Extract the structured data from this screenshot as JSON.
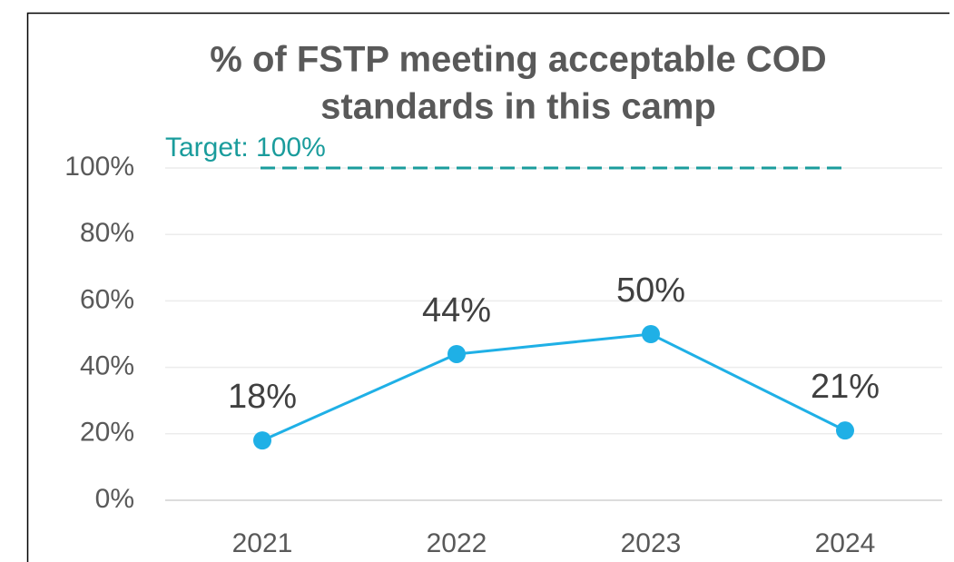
{
  "chart_data": {
    "type": "line",
    "title": [
      "% of FSTP meeting acceptable COD",
      "standards in this camp"
    ],
    "categories": [
      "2021",
      "2022",
      "2023",
      "2024"
    ],
    "values": [
      18,
      44,
      50,
      21
    ],
    "value_labels": [
      "18%",
      "44%",
      "50%",
      "21%"
    ],
    "color": "#1fb0e6",
    "target": {
      "value": 100,
      "label": "Target: 100%",
      "color": "#1a9c9c"
    },
    "ylim": [
      0,
      100
    ],
    "yticks": [
      {
        "value": 0,
        "label": "0%"
      },
      {
        "value": 20,
        "label": "20%"
      },
      {
        "value": 40,
        "label": "40%"
      },
      {
        "value": 60,
        "label": "60%"
      },
      {
        "value": 80,
        "label": "80%"
      },
      {
        "value": 100,
        "label": "100%"
      }
    ],
    "grid": true
  }
}
